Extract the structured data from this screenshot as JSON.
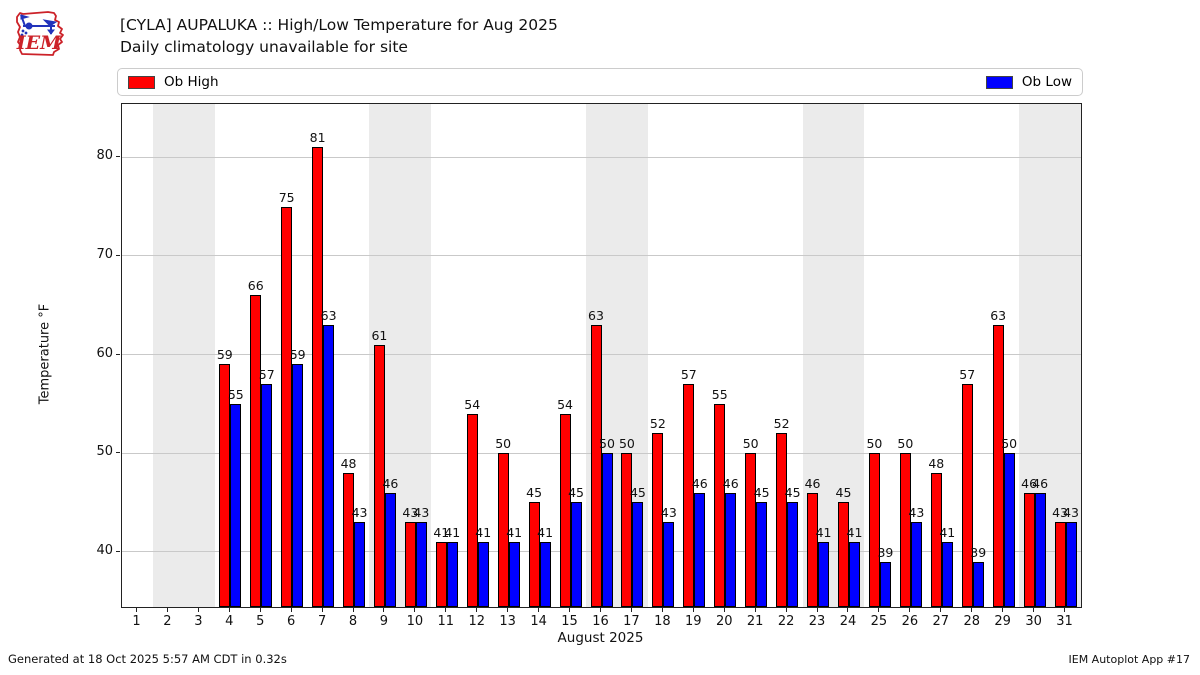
{
  "header": {
    "title_line1": "[CYLA] AUPALUKA :: High/Low Temperature for Aug 2025",
    "title_line2": "Daily climatology unavailable for site",
    "logo_text": "IEM"
  },
  "legend": {
    "high_label": "Ob High",
    "low_label": "Ob Low"
  },
  "footer": {
    "generated": "Generated at 18 Oct 2025 5:57 AM CDT in 0.32s",
    "app": "IEM Autoplot App #17"
  },
  "colors": {
    "bar_high": "#ff0000",
    "bar_low": "#0000ff",
    "weekend_band": "#ebebeb",
    "gridline": "#c9c9c9",
    "logo_red": "#cc2229",
    "logo_blue": "#2233bb"
  },
  "chart_data": {
    "type": "bar",
    "title": "[CYLA] AUPALUKA :: High/Low Temperature for Aug 2025",
    "subtitle": "Daily climatology unavailable for site",
    "xlabel": "August 2025",
    "ylabel": "Temperature °F",
    "x": [
      1,
      2,
      3,
      4,
      5,
      6,
      7,
      8,
      9,
      10,
      11,
      12,
      13,
      14,
      15,
      16,
      17,
      18,
      19,
      20,
      21,
      22,
      23,
      24,
      25,
      26,
      27,
      28,
      29,
      30,
      31
    ],
    "series": [
      {
        "name": "Ob High",
        "color": "#ff0000",
        "values": [
          null,
          null,
          null,
          59,
          66,
          75,
          81,
          48,
          61,
          43,
          41,
          54,
          50,
          45,
          54,
          63,
          50,
          52,
          57,
          55,
          50,
          52,
          46,
          45,
          50,
          50,
          48,
          57,
          63,
          46,
          43
        ]
      },
      {
        "name": "Ob Low",
        "color": "#0000ff",
        "values": [
          null,
          null,
          null,
          55,
          57,
          59,
          63,
          43,
          46,
          43,
          41,
          41,
          41,
          41,
          45,
          50,
          45,
          43,
          46,
          46,
          45,
          45,
          41,
          41,
          39,
          43,
          41,
          39,
          50,
          46,
          43
        ]
      }
    ],
    "ylim": [
      34.4,
      85.4
    ],
    "xlim": [
      0.5,
      31.5
    ],
    "yticks": [
      40,
      50,
      60,
      70,
      80
    ],
    "grid": true,
    "bar_value_labels": true,
    "legend_position": "top",
    "weekend_bands": [
      [
        1.5,
        3.5
      ],
      [
        8.5,
        10.5
      ],
      [
        15.5,
        17.5
      ],
      [
        22.5,
        24.5
      ],
      [
        29.5,
        31.5
      ]
    ],
    "missing_days": [
      1,
      2,
      3
    ]
  }
}
